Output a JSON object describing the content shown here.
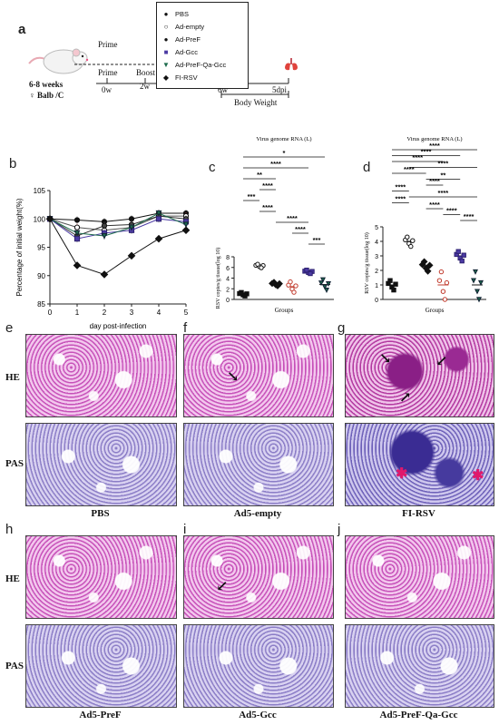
{
  "panel_labels": {
    "a": "a",
    "b": "b",
    "c": "c",
    "d": "d",
    "e": "e",
    "f": "f",
    "g": "g",
    "h": "h",
    "i": "i",
    "j": "j"
  },
  "panel_a": {
    "mouse_age": "6-8 weeks",
    "mouse_strain": "♀ Balb /C",
    "prime_top": "Prime",
    "prime": "Prime",
    "boost": "Boost",
    "t0": "0w",
    "t2": "2w",
    "t6": "6w",
    "t5dpi": "5dpi",
    "body_weight": "Body Weight",
    "legend": [
      {
        "marker": "●",
        "label": "PBS"
      },
      {
        "marker": "○",
        "label": "Ad-empty"
      },
      {
        "marker": "●",
        "label": "Ad-PreF"
      },
      {
        "marker": "■",
        "label": "Ad-Gcc"
      },
      {
        "marker": "▼",
        "label": "Ad-PreF-Qa-Gcc"
      },
      {
        "marker": "◆",
        "label": "FI-RSV"
      }
    ]
  },
  "chart_data": [
    {
      "type": "line",
      "ylabel": "Percentage of initial weight(%)",
      "xlabel": "day post-infection",
      "x": [
        0,
        1,
        2,
        3,
        4,
        5
      ],
      "ylim": [
        85,
        105
      ],
      "yticks": [
        85,
        90,
        95,
        100,
        105
      ],
      "series": [
        {
          "name": "PBS",
          "values": [
            100,
            99.8,
            99.5,
            100,
            101,
            101
          ]
        },
        {
          "name": "Ad-empty",
          "values": [
            100,
            98.5,
            98,
            98.5,
            100.5,
            100.5
          ]
        },
        {
          "name": "Ad-PreF",
          "values": [
            100,
            97,
            98.8,
            99,
            100.5,
            100
          ]
        },
        {
          "name": "Ad-Gcc",
          "values": [
            100,
            96.5,
            97.5,
            98,
            100,
            99.5
          ]
        },
        {
          "name": "Ad-PreF-Qa-Gcc",
          "values": [
            100,
            97.5,
            97,
            98.5,
            101,
            99
          ]
        },
        {
          "name": "FI-RSV",
          "values": [
            100,
            91.8,
            90.2,
            93.5,
            96.5,
            98
          ]
        }
      ]
    },
    {
      "type": "scatter",
      "title": "Virus genome RNA (L)",
      "ylabel": "RSV copies/g tissue(log 10)",
      "xlabel": "Groups",
      "ylim": [
        0,
        8
      ],
      "yticks": [
        0,
        2,
        4,
        6,
        8
      ],
      "groups": [
        "PBS",
        "Ad-empty",
        "Ad-PreF",
        "Ad-Gcc",
        "Ad-PreF-Qa-Gcc",
        "FI-RSV"
      ],
      "means": [
        1.0,
        6.3,
        2.9,
        2.4,
        5.2,
        2.8
      ],
      "significance": [
        "*",
        "****",
        "**",
        "****",
        "***",
        "****",
        "****",
        "****",
        "***"
      ]
    },
    {
      "type": "scatter",
      "title": "Virus genome RNA (L)",
      "ylabel": "RSV copies/g tissue(log 10)",
      "xlabel": "Groups",
      "ylim": [
        0,
        5
      ],
      "yticks": [
        0,
        1,
        2,
        3,
        4,
        5
      ],
      "groups": [
        "PBS",
        "Ad-empty",
        "Ad-PreF",
        "Ad-Gcc",
        "Ad-PreF-Qa-Gcc",
        "FI-RSV"
      ],
      "means": [
        1.0,
        4.0,
        2.3,
        1.0,
        3.0,
        1.0
      ],
      "significance": [
        "****",
        "****",
        "****",
        "****",
        "****",
        "**",
        "****",
        "****",
        "****",
        "****",
        "****",
        "****",
        "****"
      ]
    }
  ],
  "histology": {
    "row_he": "HE",
    "row_pas": "PAS",
    "caption_pbs": "PBS",
    "caption_empty": "Ad5-empty",
    "caption_firsv": "FI-RSV",
    "caption_pref": "Ad5-PreF",
    "caption_gcc": "Ad5-Gcc",
    "caption_prefqagcc": "Ad5-PreF-Qa-Gcc"
  }
}
